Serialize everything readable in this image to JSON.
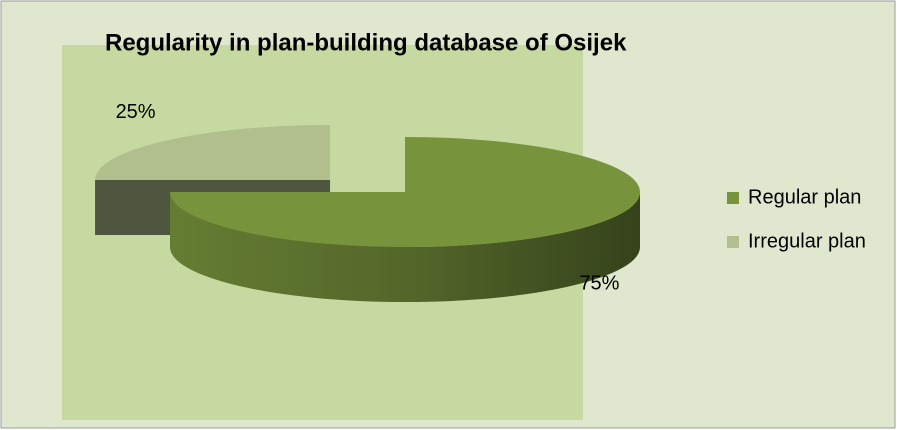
{
  "chart_data": {
    "type": "pie",
    "title": "Regularity in plan-building database of Osijek",
    "categories": [
      "Regular plan",
      "Irregular plan"
    ],
    "values": [
      75,
      25
    ],
    "value_labels": [
      "75%",
      "25%"
    ],
    "colors": [
      "#77933c",
      "#b0bf8c"
    ],
    "legend": "right"
  }
}
